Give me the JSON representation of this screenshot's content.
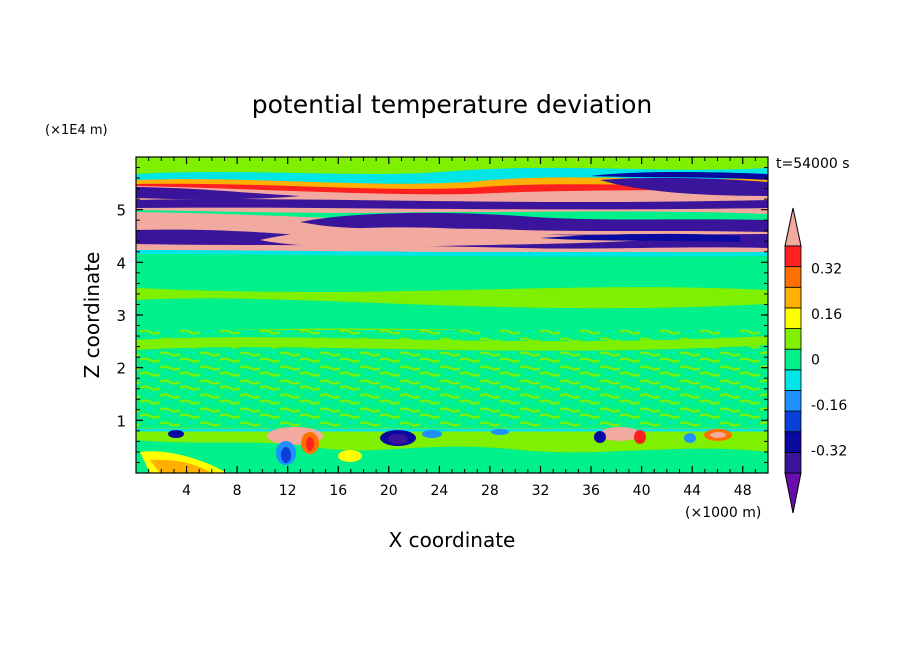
{
  "chart_data": {
    "type": "heatmap",
    "title": "potential temperature deviation",
    "xlabel": "X coordinate",
    "ylabel": "Z coordinate",
    "x_unit": "(×1000 m)",
    "y_unit": "(×1E4 m)",
    "time_label": "t=54000 s",
    "x_range": [
      0,
      50
    ],
    "y_range": [
      0,
      6
    ],
    "x_ticks": [
      4,
      8,
      12,
      16,
      20,
      24,
      28,
      32,
      36,
      40,
      44,
      48
    ],
    "y_ticks": [
      1,
      2,
      3,
      4,
      5
    ],
    "colorbar": {
      "levels": [
        -0.48,
        -0.4,
        -0.32,
        -0.24,
        -0.16,
        -0.08,
        0,
        0.08,
        0.16,
        0.24,
        0.32,
        0.4,
        0.48
      ],
      "colors": [
        "#6a0dad",
        "#3a149a",
        "#0a0aa0",
        "#0a3fd8",
        "#1e90ff",
        "#00e5e5",
        "#00f08c",
        "#7ff000",
        "#ffff00",
        "#ffb000",
        "#ff7000",
        "#ff2020",
        "#f2a9a0"
      ],
      "tick_labels": [
        "-0.32",
        "-0.16",
        "0",
        "0.16",
        "0.32"
      ],
      "tick_values": [
        -0.32,
        -0.16,
        0,
        0.16,
        0.32
      ]
    }
  }
}
